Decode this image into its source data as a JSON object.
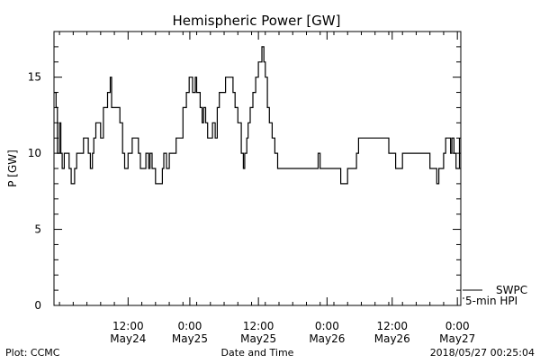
{
  "chart_data": {
    "type": "line",
    "title": "Hemispheric Power [GW]",
    "ylabel": "P [GW]",
    "xlabel": "Date and Time",
    "ylim": [
      0,
      18
    ],
    "y_ticks": [
      0,
      5,
      10,
      15
    ],
    "x_unit": "hours since 00:00 May24",
    "xlim": [
      -10.8,
      48.5
    ],
    "x_ticks": [
      {
        "x": 0,
        "line1": "12:00",
        "line2": "May24"
      },
      {
        "x": 9,
        "line1": "0:00",
        "line2": "May25"
      },
      {
        "x": 19,
        "line1": "12:00",
        "line2": "May25"
      },
      {
        "x": 29,
        "line1": "0:00",
        "line2": "May26"
      },
      {
        "x": 38.5,
        "line1": "12:00",
        "line2": "May26"
      },
      {
        "x": 48,
        "line1": "0:00",
        "line2": "May27"
      }
    ],
    "legend": [
      "SWPC",
      "5-min HPI"
    ],
    "series": [
      {
        "name": "SWPC",
        "step": true,
        "x": [
          -10.8,
          -10.5,
          -10.3,
          -10.0,
          -9.8,
          -9.6,
          -9.3,
          -8.6,
          -8.3,
          -7.8,
          -7.5,
          -7.1,
          -6.5,
          -5.8,
          -5.5,
          -5.2,
          -5.0,
          -4.7,
          -4.0,
          -3.6,
          -3.0,
          -2.6,
          -2.4,
          -2.0,
          -1.8,
          -1.2,
          -0.8,
          -0.5,
          -0.3,
          0.0,
          0.3,
          0.6,
          1.5,
          1.8,
          2.3,
          2.6,
          3.0,
          3.2,
          3.5,
          4.0,
          4.5,
          5.0,
          5.2,
          5.6,
          6.0,
          6.5,
          7.0,
          7.5,
          8.0,
          8.5,
          8.9,
          9.4,
          9.8,
          10.0,
          10.5,
          10.8,
          11.0,
          11.3,
          11.6,
          12.0,
          12.3,
          12.7,
          13.0,
          13.3,
          13.5,
          14.2,
          15.3,
          15.6,
          16.0,
          16.5,
          16.8,
          17.0,
          17.3,
          17.5,
          17.8,
          18.2,
          18.6,
          19.0,
          19.5,
          19.8,
          20.0,
          20.3,
          20.6,
          21.0,
          21.4,
          21.8,
          22.3,
          23.0,
          27.6,
          27.7,
          28.0,
          28.3,
          30.0,
          31.0,
          32.0,
          33.0,
          33.3,
          33.6,
          38.0,
          38.5,
          39.0,
          40.0,
          41.5,
          44.0,
          45.0,
          45.3,
          46.0,
          46.3,
          47.0,
          47.2,
          47.5,
          47.8,
          48.3
        ],
        "y": [
          14,
          13,
          10,
          12,
          10,
          9,
          10,
          9,
          8,
          9,
          10,
          10,
          11,
          10,
          9,
          10,
          11,
          12,
          11,
          13,
          14,
          15,
          13,
          13,
          13,
          12,
          10,
          9,
          9,
          10,
          10,
          11,
          10,
          9,
          9,
          10,
          9,
          10,
          9,
          8,
          8,
          9,
          10,
          9,
          10,
          10,
          11,
          11,
          13,
          14,
          15,
          14,
          15,
          14,
          13,
          12,
          13,
          12,
          11,
          11,
          12,
          11,
          13,
          14,
          14,
          15,
          14,
          13,
          12,
          10,
          9,
          10,
          11,
          12,
          13,
          14,
          15,
          16,
          17,
          16,
          15,
          13,
          12,
          11,
          10,
          9,
          9,
          9,
          9,
          10,
          9,
          9,
          9,
          8,
          9,
          9,
          10,
          11,
          10,
          10,
          9,
          10,
          10,
          9,
          8,
          9,
          10,
          11,
          10,
          11,
          10,
          9,
          11
        ]
      }
    ]
  },
  "footer": {
    "left": "Plot: CCMC",
    "center": "Date and Time",
    "right": "2018/05/27 00:25:04"
  }
}
